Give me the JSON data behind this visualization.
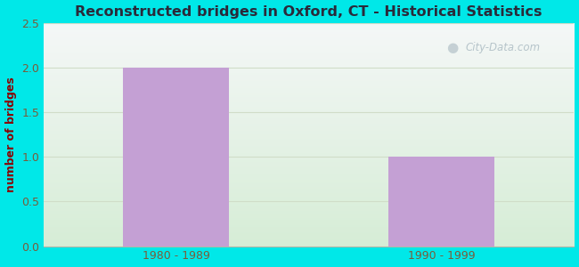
{
  "title": "Reconstructed bridges in Oxford, CT - Historical Statistics",
  "categories": [
    "1980 - 1989",
    "1990 - 1999"
  ],
  "values": [
    2,
    1
  ],
  "bar_color": "#c4a0d4",
  "ylabel": "number of bridges",
  "ylim": [
    0,
    2.5
  ],
  "yticks": [
    0,
    0.5,
    1,
    1.5,
    2,
    2.5
  ],
  "bg_outer": "#00e8e8",
  "title_color": "#2a2a3a",
  "axis_label_color": "#8b0000",
  "tick_label_color": "#7a5c3a",
  "grid_color": "#d0ddc8",
  "watermark_text": "City-Data.com",
  "watermark_color": "#a8b8c0",
  "bg_top_right": "#f5f5f8",
  "bg_bottom_left": "#d4ecd4"
}
